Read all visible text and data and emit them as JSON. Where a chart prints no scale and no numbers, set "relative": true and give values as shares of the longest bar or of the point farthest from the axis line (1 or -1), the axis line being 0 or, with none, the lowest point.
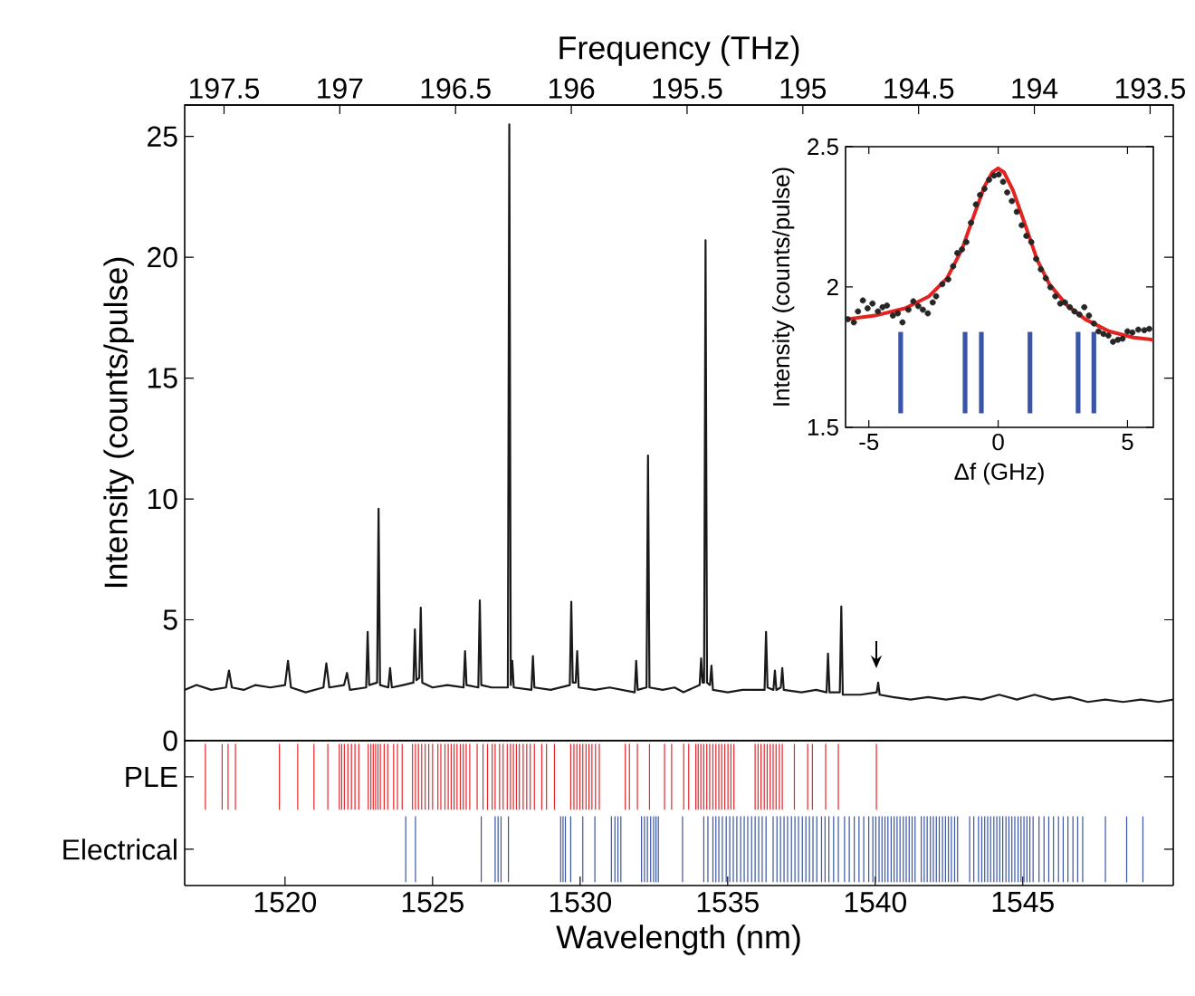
{
  "chart_data": [
    {
      "type": "line",
      "ylabel": "Intensity (counts/pulse)",
      "x2label": "Frequency (THz)",
      "xlim": [
        1516.6,
        1550.1
      ],
      "ylim": [
        0,
        26.3
      ],
      "yticks": [
        0,
        5,
        10,
        15,
        20,
        25
      ],
      "x2lim": [
        197.67,
        193.4
      ],
      "x2ticks": [
        197.5,
        197,
        196.5,
        196,
        195.5,
        195,
        194.5,
        194,
        193.5
      ],
      "tick_labels": "y",
      "x": [
        1516.6,
        1517.0,
        1517.5,
        1518.0,
        1518.1,
        1518.2,
        1518.6,
        1519.0,
        1519.5,
        1520.0,
        1520.1,
        1520.2,
        1520.7,
        1521.3,
        1521.4,
        1521.5,
        1522.0,
        1522.1,
        1522.2,
        1522.75,
        1522.8,
        1522.85,
        1523.12,
        1523.17,
        1523.22,
        1523.5,
        1523.56,
        1523.62,
        1524.0,
        1524.35,
        1524.4,
        1524.45,
        1524.55,
        1524.6,
        1524.65,
        1525.0,
        1525.5,
        1526.05,
        1526.1,
        1526.15,
        1526.55,
        1526.6,
        1526.65,
        1527.0,
        1527.55,
        1527.6,
        1527.65,
        1527.7,
        1527.75,
        1528.35,
        1528.4,
        1528.45,
        1529.0,
        1529.65,
        1529.7,
        1529.75,
        1529.85,
        1529.9,
        1529.95,
        1530.5,
        1531.0,
        1531.85,
        1531.9,
        1531.95,
        1532.25,
        1532.3,
        1532.35,
        1532.8,
        1533.2,
        1533.5,
        1534.05,
        1534.1,
        1534.15,
        1534.2,
        1534.25,
        1534.3,
        1534.4,
        1534.45,
        1534.5,
        1535.0,
        1535.5,
        1536.25,
        1536.3,
        1536.35,
        1536.55,
        1536.6,
        1536.65,
        1536.8,
        1536.85,
        1536.9,
        1537.5,
        1538.0,
        1538.35,
        1538.4,
        1538.45,
        1538.8,
        1538.85,
        1538.9,
        1539.5,
        1540.05,
        1540.1,
        1540.15,
        1540.6,
        1541.2,
        1541.8,
        1542.4,
        1543.0,
        1543.6,
        1544.2,
        1544.8,
        1545.4,
        1546.0,
        1546.6,
        1547.2,
        1547.8,
        1548.4,
        1549.0,
        1549.6,
        1550.1
      ],
      "series": [
        {
          "color": "#1a1a1a",
          "values": [
            2.1,
            2.3,
            2.1,
            2.2,
            2.9,
            2.2,
            2.1,
            2.3,
            2.2,
            2.3,
            3.3,
            2.2,
            2.0,
            2.2,
            3.2,
            2.2,
            2.3,
            2.8,
            2.1,
            2.2,
            4.5,
            2.3,
            2.4,
            9.6,
            2.3,
            2.2,
            3.0,
            2.2,
            2.3,
            2.4,
            4.6,
            2.5,
            2.6,
            5.5,
            2.4,
            2.2,
            2.3,
            2.2,
            3.7,
            2.3,
            2.2,
            5.8,
            2.3,
            2.2,
            2.2,
            25.5,
            2.3,
            3.3,
            2.2,
            2.1,
            3.5,
            2.2,
            2.1,
            2.3,
            5.75,
            2.4,
            2.4,
            3.7,
            2.2,
            2.1,
            2.2,
            2.0,
            3.3,
            2.1,
            2.2,
            11.8,
            2.2,
            2.1,
            2.2,
            2.0,
            2.3,
            3.4,
            2.4,
            2.4,
            20.7,
            2.4,
            2.3,
            3.1,
            2.1,
            2.0,
            2.1,
            2.1,
            4.5,
            2.2,
            2.1,
            2.9,
            2.1,
            2.2,
            3.0,
            2.1,
            2.0,
            2.1,
            2.0,
            3.6,
            2.0,
            2.0,
            5.55,
            1.9,
            1.9,
            2.0,
            2.4,
            1.9,
            1.8,
            1.7,
            1.8,
            1.7,
            1.8,
            1.7,
            1.9,
            1.7,
            1.9,
            1.7,
            1.8,
            1.6,
            1.7,
            1.6,
            1.7,
            1.6,
            1.7
          ]
        }
      ]
    },
    {
      "type": "scatter",
      "xlabel": "Δf (GHz)",
      "ylabel": "Intensity (counts/pulse)",
      "xlim": [
        -5.9,
        6
      ],
      "ylim": [
        1.5,
        2.5
      ],
      "xticks": [
        -5,
        0,
        5
      ],
      "yticks": [
        1.5,
        2,
        2.5
      ],
      "series": [
        {
          "type": "scatter",
          "marker": "circle",
          "color": "#262626",
          "x": [
            -5.81,
            -5.58,
            -5.42,
            -5.23,
            -5.05,
            -4.86,
            -4.65,
            -4.47,
            -4.3,
            -4.07,
            -3.88,
            -3.7,
            -3.47,
            -3.28,
            -3.09,
            -2.91,
            -2.72,
            -2.53,
            -2.4,
            -2.16,
            -1.93,
            -1.74,
            -1.58,
            -1.4,
            -1.23,
            -1.05,
            -0.86,
            -0.7,
            -0.53,
            -0.35,
            -0.16,
            0.02,
            0.19,
            0.35,
            0.53,
            0.72,
            0.91,
            1.09,
            1.28,
            1.47,
            1.65,
            1.84,
            2.02,
            2.21,
            2.4,
            2.58,
            2.77,
            2.95,
            3.14,
            3.33,
            3.51,
            3.7,
            3.88,
            4.07,
            4.26,
            4.44,
            4.63,
            4.81,
            5.0,
            5.19,
            5.42,
            5.65,
            5.84
          ],
          "values": [
            1.885,
            1.874,
            1.913,
            1.952,
            1.924,
            1.941,
            1.913,
            1.928,
            1.934,
            1.898,
            1.906,
            1.874,
            1.919,
            1.949,
            1.932,
            1.919,
            1.906,
            1.945,
            1.967,
            2.01,
            2.027,
            2.074,
            2.121,
            2.134,
            2.16,
            2.229,
            2.294,
            2.328,
            2.35,
            2.382,
            2.397,
            2.401,
            2.375,
            2.337,
            2.306,
            2.268,
            2.22,
            2.182,
            2.16,
            2.1,
            2.063,
            2.031,
            1.999,
            1.967,
            1.941,
            1.945,
            1.928,
            1.913,
            1.902,
            1.928,
            1.898,
            1.87,
            1.842,
            1.833,
            1.827,
            1.805,
            1.812,
            1.816,
            1.842,
            1.838,
            1.848,
            1.846,
            1.851
          ]
        },
        {
          "type": "line",
          "color": "#e3231f",
          "x": [
            -5.88,
            -4.77,
            -3.6,
            -2.67,
            -1.98,
            -1.4,
            -0.93,
            -0.53,
            -0.23,
            0.0,
            0.23,
            0.58,
            1.05,
            1.51,
            1.98,
            2.67,
            3.37,
            4.3,
            5.23,
            5.98
          ],
          "values": [
            1.885,
            1.898,
            1.924,
            1.967,
            2.031,
            2.134,
            2.257,
            2.358,
            2.408,
            2.423,
            2.408,
            2.343,
            2.22,
            2.096,
            2.01,
            1.934,
            1.885,
            1.842,
            1.82,
            1.812
          ]
        },
        {
          "type": "bar",
          "color": "#3a55a5",
          "x": [
            -3.77,
            -1.28,
            -0.65,
            1.23,
            3.09,
            3.7
          ],
          "base": [
            1.55,
            1.55,
            1.55,
            1.55,
            1.55,
            1.55
          ],
          "values": [
            0.29,
            0.29,
            0.29,
            0.29,
            0.29,
            0.29
          ]
        }
      ]
    },
    {
      "type": "bar",
      "relative": true,
      "ylabel": "PLE",
      "xlim": [
        1516.6,
        1550.1
      ],
      "tick_labels": "y",
      "series": [
        {
          "color": "#e8262b",
          "x": [
            1517.3,
            1517.87,
            1518.07,
            1518.32,
            1519.81,
            1520.43,
            1520.98,
            1521.45,
            1521.84,
            1521.92,
            1522.01,
            1522.13,
            1522.25,
            1522.37,
            1522.5,
            1522.82,
            1522.91,
            1522.99,
            1523.07,
            1523.15,
            1523.23,
            1523.36,
            1523.48,
            1523.68,
            1523.81,
            1523.97,
            1524.32,
            1524.42,
            1524.52,
            1524.63,
            1524.75,
            1524.87,
            1525.0,
            1525.18,
            1525.28,
            1525.42,
            1525.53,
            1525.63,
            1525.73,
            1525.83,
            1525.94,
            1526.04,
            1526.14,
            1526.26,
            1526.51,
            1526.71,
            1526.86,
            1527.02,
            1527.12,
            1527.27,
            1527.39,
            1527.53,
            1527.64,
            1527.74,
            1527.84,
            1527.94,
            1528.07,
            1528.19,
            1528.31,
            1528.45,
            1528.7,
            1528.86,
            1529.13,
            1529.68,
            1529.79,
            1529.89,
            1529.99,
            1530.09,
            1530.2,
            1530.3,
            1530.4,
            1530.52,
            1530.65,
            1531.53,
            1531.67,
            1531.94,
            1532.35,
            1532.86,
            1533.1,
            1533.51,
            1533.68,
            1533.92,
            1534.0,
            1534.09,
            1534.19,
            1534.29,
            1534.39,
            1534.5,
            1534.6,
            1534.7,
            1534.8,
            1534.9,
            1535.01,
            1535.11,
            1535.21,
            1535.93,
            1536.03,
            1536.13,
            1536.24,
            1536.34,
            1536.44,
            1536.54,
            1536.64,
            1536.75,
            1536.85,
            1537.26,
            1537.71,
            1537.87,
            1538.32,
            1538.75,
            1540.04
          ],
          "values": [
            1,
            1,
            1,
            1,
            1,
            1,
            1,
            1,
            1,
            1,
            1,
            1,
            1,
            1,
            1,
            1,
            1,
            1,
            1,
            1,
            1,
            1,
            1,
            1,
            1,
            1,
            1,
            1,
            1,
            1,
            1,
            1,
            1,
            1,
            1,
            1,
            1,
            1,
            1,
            1,
            1,
            1,
            1,
            1,
            1,
            1,
            1,
            1,
            1,
            1,
            1,
            1,
            1,
            1,
            1,
            1,
            1,
            1,
            1,
            1,
            1,
            1,
            1,
            1,
            1,
            1,
            1,
            1,
            1,
            1,
            1,
            1,
            1,
            1,
            1,
            1,
            1,
            1,
            1,
            1,
            1,
            1,
            1,
            1,
            1,
            1,
            1,
            1,
            1,
            1,
            1,
            1,
            1,
            1,
            1,
            1,
            1,
            1,
            1,
            1,
            1,
            1,
            1,
            1,
            1,
            1,
            1,
            1,
            1,
            1,
            1
          ]
        }
      ]
    },
    {
      "type": "bar",
      "relative": true,
      "ylabel": "Electrical",
      "xlabel": "Wavelength (nm)",
      "xlim": [
        1516.6,
        1550.1
      ],
      "xticks": [
        1520,
        1525,
        1530,
        1535,
        1540,
        1545
      ],
      "series": [
        {
          "color": "#3a55a5",
          "x": [
            1524.09,
            1524.42,
            1526.65,
            1527.12,
            1527.22,
            1527.32,
            1527.57,
            1529.34,
            1529.42,
            1529.5,
            1529.68,
            1530.09,
            1530.5,
            1531.06,
            1531.18,
            1531.28,
            1531.38,
            1532.08,
            1532.18,
            1532.28,
            1532.39,
            1532.49,
            1532.57,
            1532.65,
            1533.47,
            1534.19,
            1534.33,
            1534.5,
            1534.6,
            1534.7,
            1534.82,
            1534.95,
            1535.07,
            1535.19,
            1535.31,
            1535.44,
            1535.56,
            1535.68,
            1535.81,
            1535.93,
            1536.05,
            1536.17,
            1536.3,
            1536.54,
            1536.67,
            1536.79,
            1536.91,
            1537.03,
            1537.16,
            1537.28,
            1537.4,
            1537.53,
            1537.65,
            1537.77,
            1537.89,
            1538.02,
            1538.18,
            1538.3,
            1538.43,
            1538.59,
            1538.75,
            1538.96,
            1539.12,
            1539.29,
            1539.45,
            1539.61,
            1539.78,
            1539.92,
            1540.02,
            1540.13,
            1540.23,
            1540.33,
            1540.43,
            1540.54,
            1540.64,
            1540.74,
            1540.84,
            1540.95,
            1541.05,
            1541.15,
            1541.25,
            1541.35,
            1541.56,
            1541.66,
            1541.76,
            1541.87,
            1541.97,
            1542.07,
            1542.17,
            1542.28,
            1542.38,
            1542.48,
            1542.58,
            1542.69,
            1542.79,
            1543.2,
            1543.34,
            1543.5,
            1543.61,
            1543.71,
            1543.81,
            1543.91,
            1544.02,
            1544.12,
            1544.22,
            1544.32,
            1544.43,
            1544.53,
            1544.63,
            1544.73,
            1544.84,
            1544.94,
            1545.04,
            1545.14,
            1545.24,
            1545.35,
            1545.55,
            1545.72,
            1545.88,
            1546.04,
            1546.21,
            1546.37,
            1546.53,
            1546.7,
            1546.86,
            1547.03,
            1547.8,
            1548.52,
            1549.07
          ],
          "values": [
            1,
            1,
            1,
            1,
            1,
            1,
            1,
            1,
            1,
            1,
            1,
            1,
            1,
            1,
            1,
            1,
            1,
            1,
            1,
            1,
            1,
            1,
            1,
            1,
            1,
            1,
            1,
            1,
            1,
            1,
            1,
            1,
            1,
            1,
            1,
            1,
            1,
            1,
            1,
            1,
            1,
            1,
            1,
            1,
            1,
            1,
            1,
            1,
            1,
            1,
            1,
            1,
            1,
            1,
            1,
            1,
            1,
            1,
            1,
            1,
            1,
            1,
            1,
            1,
            1,
            1,
            1,
            1,
            1,
            1,
            1,
            1,
            1,
            1,
            1,
            1,
            1,
            1,
            1,
            1,
            1,
            1,
            1,
            1,
            1,
            1,
            1,
            1,
            1,
            1,
            1,
            1,
            1,
            1,
            1,
            1,
            1,
            1,
            1,
            1,
            1,
            1,
            1,
            1,
            1,
            1,
            1,
            1,
            1,
            1,
            1,
            1,
            1,
            1,
            1,
            1,
            1,
            1,
            1,
            1,
            1,
            1,
            1,
            1,
            1,
            1,
            1,
            1,
            1
          ]
        }
      ]
    }
  ]
}
